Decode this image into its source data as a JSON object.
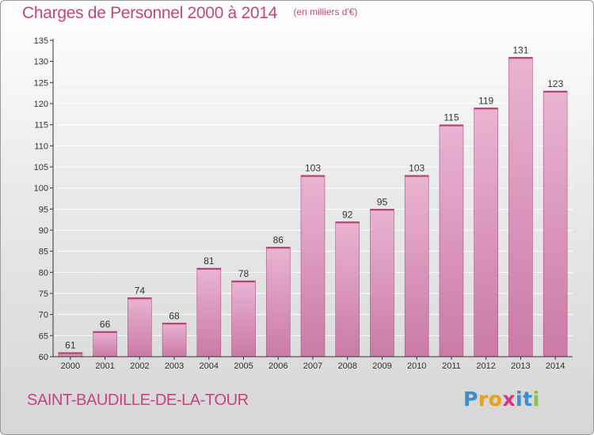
{
  "header": {
    "title": "Charges de Personnel 2000 à 2014",
    "subtitle": "(en milliers d'€)"
  },
  "footer": {
    "commune": "SAINT-BAUDILLE-DE-LA-TOUR",
    "logo_text": "Proxiti",
    "logo_letters": [
      {
        "char": "P",
        "color": "#3a8fd0"
      },
      {
        "char": "r",
        "color": "#e8a21b"
      },
      {
        "char": "o",
        "color": "#e8a21b"
      },
      {
        "char": "x",
        "color": "#d23a7a"
      },
      {
        "char": "i",
        "color": "#3a8fd0"
      },
      {
        "char": "t",
        "color": "#3a8fd0"
      },
      {
        "char": "i",
        "color": "#8bc34a"
      }
    ]
  },
  "colors": {
    "title": "#c4457e",
    "bar_light": "#eab3d2",
    "bar_dark": "#c97aa6",
    "axis": "#333333"
  },
  "chart_data": {
    "type": "bar",
    "categories": [
      "2000",
      "2001",
      "2002",
      "2003",
      "2004",
      "2005",
      "2006",
      "2007",
      "2008",
      "2009",
      "2010",
      "2011",
      "2012",
      "2013",
      "2014"
    ],
    "values": [
      61,
      66,
      74,
      68,
      81,
      78,
      86,
      103,
      92,
      95,
      103,
      115,
      119,
      131,
      123
    ],
    "data_labels": [
      "61",
      "66",
      "74",
      "68",
      "81",
      "78",
      "86",
      "103",
      "92",
      "95",
      "103",
      "115",
      "119",
      "131",
      "123"
    ],
    "y_ticks": [
      60,
      65,
      70,
      75,
      80,
      85,
      90,
      95,
      100,
      105,
      110,
      115,
      120,
      125,
      130,
      135
    ],
    "ylim": [
      60,
      135
    ],
    "grid": true
  }
}
